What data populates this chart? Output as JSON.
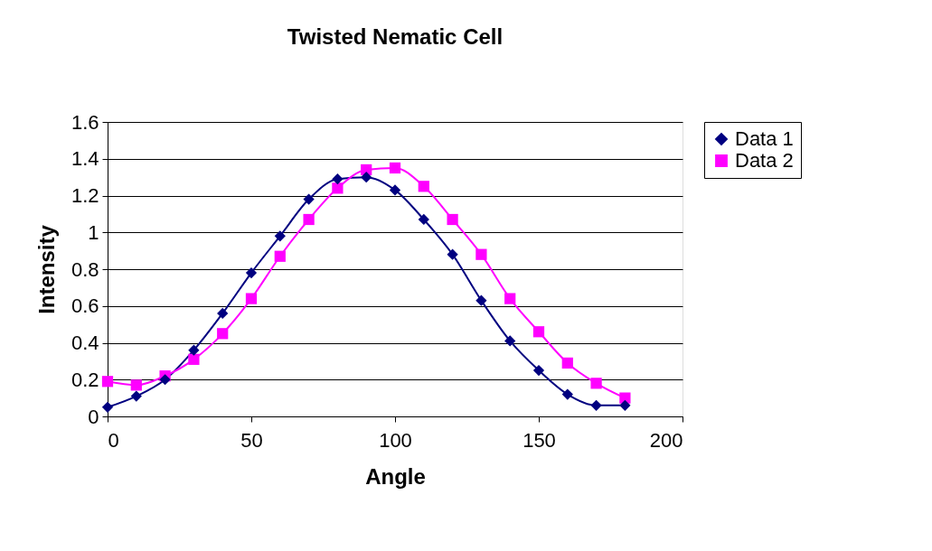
{
  "chart_data": {
    "type": "line",
    "title": "Twisted Nematic Cell",
    "xlabel": "Angle",
    "ylabel": "Intensity",
    "x": [
      0,
      10,
      20,
      30,
      40,
      50,
      60,
      70,
      80,
      90,
      100,
      110,
      120,
      130,
      140,
      150,
      160,
      170,
      180
    ],
    "series": [
      {
        "name": "Data 1",
        "color": "#000080",
        "marker": "diamond",
        "values": [
          0.05,
          0.11,
          0.2,
          0.36,
          0.56,
          0.78,
          0.98,
          1.18,
          1.29,
          1.3,
          1.23,
          1.07,
          0.88,
          0.63,
          0.41,
          0.25,
          0.12,
          0.06,
          0.06
        ]
      },
      {
        "name": "Data 2",
        "color": "#ff00ff",
        "marker": "square",
        "values": [
          0.19,
          0.17,
          0.22,
          0.31,
          0.45,
          0.64,
          0.87,
          1.07,
          1.24,
          1.34,
          1.35,
          1.25,
          1.07,
          0.88,
          0.64,
          0.46,
          0.29,
          0.18,
          0.1
        ]
      }
    ],
    "xlim": [
      0,
      200
    ],
    "xticks": [
      0,
      50,
      100,
      150,
      200
    ],
    "ylim": [
      0,
      1.6
    ],
    "yticks": [
      0,
      0.2,
      0.4,
      0.6,
      0.8,
      1,
      1.2,
      1.4,
      1.6
    ],
    "grid": "y",
    "legend": "right",
    "line_style": "solid"
  }
}
